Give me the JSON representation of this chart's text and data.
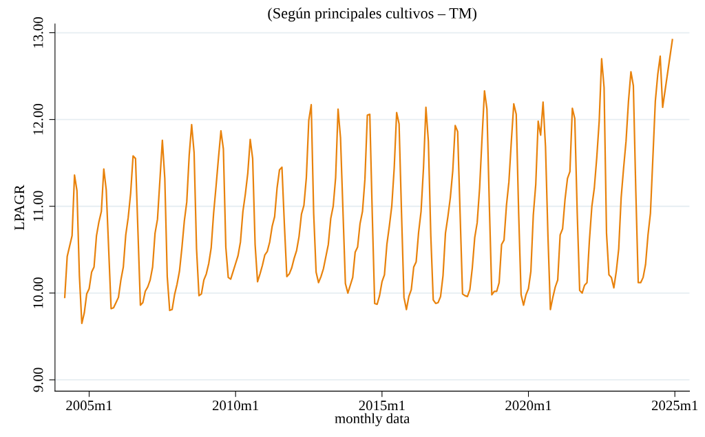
{
  "chart_data": {
    "type": "line",
    "subtitle": "(Según principales cultivos – TM)",
    "xlabel": "monthly data",
    "ylabel": "LPAGR",
    "grid": "y",
    "xlim": [
      "2003-11",
      "2025-07"
    ],
    "ylim": [
      8.87,
      13.1
    ],
    "xticks": [
      {
        "value": "2005-01",
        "label": "2005m1"
      },
      {
        "value": "2010-01",
        "label": "2010m1"
      },
      {
        "value": "2015-01",
        "label": "2015m1"
      },
      {
        "value": "2020-01",
        "label": "2020m1"
      },
      {
        "value": "2025-01",
        "label": "2025m1"
      }
    ],
    "yticks": [
      {
        "value": 9,
        "label": "9.00"
      },
      {
        "value": 10,
        "label": "10.00"
      },
      {
        "value": 11,
        "label": "11.00"
      },
      {
        "value": 12,
        "label": "12.00"
      },
      {
        "value": 13,
        "label": "13.00"
      }
    ],
    "series": [
      {
        "color": "#e8820c",
        "x": [
          "2004-03",
          "2004-04",
          "2004-06",
          "2004-07",
          "2004-08",
          "2004-09",
          "2004-10",
          "2004-11",
          "2004-12",
          "2005-01",
          "2005-02",
          "2005-03",
          "2005-04",
          "2005-05",
          "2005-06",
          "2005-07",
          "2005-08",
          "2005-10",
          "2005-11",
          "2005-12",
          "2006-01",
          "2006-02",
          "2006-03",
          "2006-04",
          "2006-05",
          "2006-06",
          "2006-07",
          "2006-08",
          "2006-10",
          "2006-11",
          "2006-12",
          "2007-01",
          "2007-02",
          "2007-03",
          "2007-04",
          "2007-05",
          "2007-07",
          "2007-08",
          "2007-09",
          "2007-10",
          "2007-11",
          "2007-12",
          "2008-01",
          "2008-02",
          "2008-03",
          "2008-04",
          "2008-05",
          "2008-06",
          "2008-07",
          "2008-08",
          "2008-09",
          "2008-10",
          "2008-11",
          "2008-12",
          "2009-01",
          "2009-02",
          "2009-03",
          "2009-04",
          "2009-05",
          "2009-06",
          "2009-07",
          "2009-08",
          "2009-09",
          "2009-10",
          "2009-11",
          "2009-12",
          "2010-01",
          "2010-02",
          "2010-03",
          "2010-04",
          "2010-05",
          "2010-06",
          "2010-07",
          "2010-08",
          "2010-09",
          "2010-10",
          "2010-11",
          "2010-12",
          "2011-01",
          "2011-02",
          "2011-03",
          "2011-04",
          "2011-05",
          "2011-06",
          "2011-07",
          "2011-08",
          "2011-09",
          "2011-10",
          "2011-11",
          "2011-12",
          "2012-01",
          "2012-02",
          "2012-03",
          "2012-04",
          "2012-05",
          "2012-06",
          "2012-07",
          "2012-08",
          "2012-09",
          "2012-10",
          "2012-11",
          "2012-12",
          "2013-01",
          "2013-02",
          "2013-03",
          "2013-04",
          "2013-05",
          "2013-06",
          "2013-07",
          "2013-08",
          "2013-10",
          "2013-11",
          "2013-12",
          "2014-01",
          "2014-02",
          "2014-03",
          "2014-04",
          "2014-05",
          "2014-06",
          "2014-07",
          "2014-08",
          "2014-09",
          "2014-10",
          "2014-11",
          "2014-12",
          "2015-01",
          "2015-02",
          "2015-03",
          "2015-04",
          "2015-05",
          "2015-06",
          "2015-07",
          "2015-08",
          "2015-09",
          "2015-10",
          "2015-11",
          "2015-12",
          "2016-01",
          "2016-02",
          "2016-03",
          "2016-04",
          "2016-05",
          "2016-06",
          "2016-07",
          "2016-08",
          "2016-09",
          "2016-10",
          "2016-11",
          "2016-12",
          "2017-01",
          "2017-02",
          "2017-03",
          "2017-04",
          "2017-05",
          "2017-06",
          "2017-07",
          "2017-08",
          "2017-09",
          "2017-10",
          "2017-11",
          "2017-12",
          "2018-01",
          "2018-02",
          "2018-03",
          "2018-04",
          "2018-05",
          "2018-06",
          "2018-07",
          "2018-08",
          "2018-09",
          "2018-10",
          "2018-11",
          "2018-12",
          "2019-01",
          "2019-02",
          "2019-03",
          "2019-04",
          "2019-05",
          "2019-06",
          "2019-07",
          "2019-08",
          "2019-09",
          "2019-10",
          "2019-11",
          "2019-12",
          "2020-01",
          "2020-02",
          "2020-03",
          "2020-04",
          "2020-05",
          "2020-06",
          "2020-07",
          "2020-08",
          "2020-09",
          "2020-10",
          "2020-11",
          "2020-12",
          "2021-01",
          "2021-02",
          "2021-03",
          "2021-04",
          "2021-05",
          "2021-06",
          "2021-07",
          "2021-08",
          "2021-09",
          "2021-10",
          "2021-11",
          "2021-12",
          "2022-01",
          "2022-02",
          "2022-03",
          "2022-04",
          "2022-05",
          "2022-06",
          "2022-07",
          "2022-08",
          "2022-09",
          "2022-10",
          "2022-11",
          "2022-12",
          "2023-01",
          "2023-02",
          "2023-03",
          "2023-04",
          "2023-05",
          "2023-06",
          "2023-07",
          "2023-08",
          "2023-09",
          "2023-10",
          "2023-11",
          "2023-12",
          "2024-01",
          "2024-02",
          "2024-03",
          "2024-04",
          "2024-05",
          "2024-06",
          "2024-07",
          "2024-08",
          "2024-12"
        ],
        "values": [
          9.95,
          10.42,
          10.66,
          11.36,
          11.18,
          10.2,
          9.65,
          9.77,
          9.99,
          10.05,
          10.24,
          10.3,
          10.66,
          10.82,
          10.94,
          11.43,
          11.19,
          9.82,
          9.83,
          9.89,
          9.95,
          10.15,
          10.3,
          10.67,
          10.87,
          11.15,
          11.58,
          11.55,
          9.86,
          9.89,
          10.02,
          10.07,
          10.15,
          10.3,
          10.69,
          10.85,
          11.76,
          11.32,
          10.19,
          9.8,
          9.81,
          9.98,
          10.1,
          10.25,
          10.52,
          10.83,
          11.05,
          11.59,
          11.94,
          11.62,
          10.51,
          9.97,
          9.99,
          10.15,
          10.22,
          10.34,
          10.52,
          10.92,
          11.23,
          11.56,
          11.87,
          11.66,
          10.53,
          10.18,
          10.16,
          10.25,
          10.34,
          10.43,
          10.59,
          10.94,
          11.14,
          11.38,
          11.77,
          11.55,
          10.56,
          10.13,
          10.22,
          10.32,
          10.44,
          10.48,
          10.59,
          10.77,
          10.88,
          11.21,
          11.42,
          11.45,
          10.79,
          10.19,
          10.22,
          10.29,
          10.4,
          10.49,
          10.65,
          10.91,
          11.01,
          11.33,
          11.99,
          12.17,
          10.92,
          10.24,
          10.12,
          10.19,
          10.28,
          10.42,
          10.56,
          10.86,
          11.0,
          11.33,
          12.12,
          11.79,
          10.11,
          10.0,
          10.09,
          10.18,
          10.47,
          10.53,
          10.8,
          10.94,
          11.31,
          12.05,
          12.06,
          10.92,
          9.88,
          9.87,
          9.97,
          10.13,
          10.21,
          10.56,
          10.77,
          11.0,
          11.44,
          12.08,
          11.95,
          10.92,
          9.95,
          9.81,
          9.96,
          10.04,
          10.3,
          10.36,
          10.7,
          10.94,
          11.44,
          12.14,
          11.75,
          10.66,
          9.92,
          9.88,
          9.89,
          9.96,
          10.2,
          10.69,
          10.88,
          11.1,
          11.41,
          11.93,
          11.86,
          10.92,
          9.99,
          9.97,
          9.96,
          10.04,
          10.29,
          10.64,
          10.81,
          11.21,
          11.79,
          12.33,
          12.12,
          11.0,
          9.98,
          10.02,
          10.02,
          10.12,
          10.56,
          10.61,
          11.01,
          11.28,
          11.75,
          12.18,
          12.06,
          10.92,
          9.98,
          9.86,
          9.98,
          10.05,
          10.25,
          10.9,
          11.25,
          11.98,
          11.82,
          12.2,
          11.69,
          10.66,
          9.81,
          9.95,
          10.07,
          10.15,
          10.67,
          10.74,
          11.08,
          11.32,
          11.4,
          12.13,
          12.01,
          10.92,
          10.03,
          10.0,
          10.09,
          10.12,
          10.61,
          11.0,
          11.21,
          11.56,
          11.98,
          12.7,
          12.37,
          10.69,
          10.21,
          10.18,
          10.06,
          10.25,
          10.51,
          11.1,
          11.44,
          11.75,
          12.21,
          12.55,
          12.39,
          11.18,
          10.12,
          10.12,
          10.18,
          10.33,
          10.67,
          10.92,
          11.56,
          12.21,
          12.52,
          12.73,
          12.14,
          12.92
        ]
      }
    ]
  }
}
